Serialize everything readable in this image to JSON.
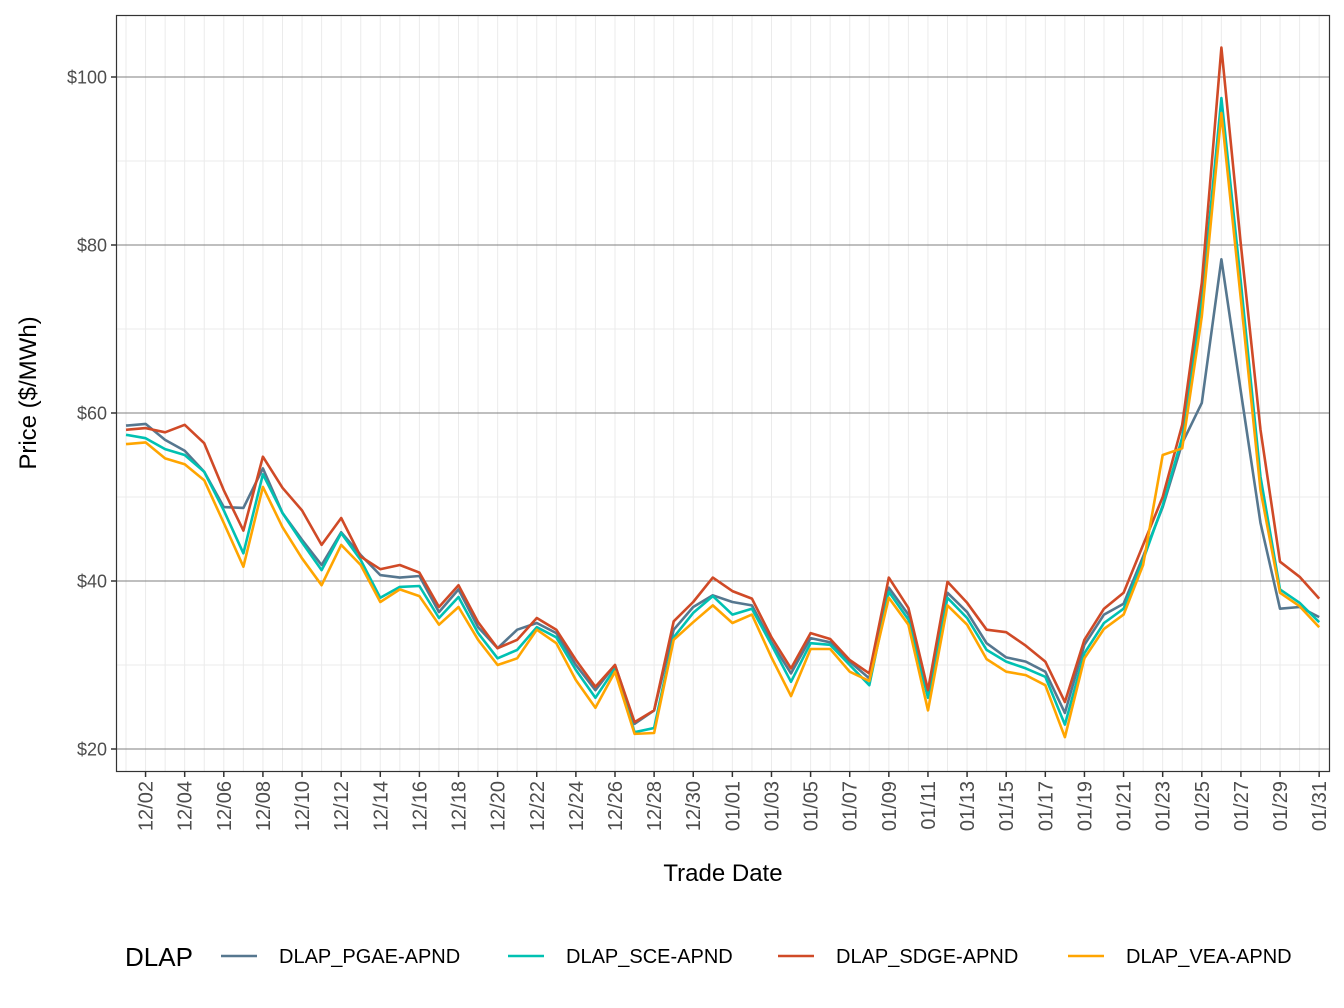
{
  "chart_data": {
    "type": "line",
    "title": "",
    "xlabel": "Trade Date",
    "ylabel": "Price ($/MWh)",
    "ylim": [
      17.5,
      107.3
    ],
    "y_ticks": [
      {
        "value": 20,
        "label": "$20"
      },
      {
        "value": 40,
        "label": "$40"
      },
      {
        "value": 60,
        "label": "$60"
      },
      {
        "value": 80,
        "label": "$80"
      },
      {
        "value": 100,
        "label": "$100"
      }
    ],
    "x_tick_labels": [
      "12/02",
      "12/04",
      "12/06",
      "12/08",
      "12/10",
      "12/12",
      "12/14",
      "12/16",
      "12/18",
      "12/20",
      "12/22",
      "12/24",
      "12/26",
      "12/28",
      "12/30",
      "01/01",
      "01/03",
      "01/05",
      "01/07",
      "01/09",
      "01/11",
      "01/13",
      "01/15",
      "01/17",
      "01/19",
      "01/21",
      "01/23",
      "01/25",
      "01/27",
      "01/29",
      "01/31"
    ],
    "x": [
      "12/01",
      "12/02",
      "12/03",
      "12/04",
      "12/05",
      "12/06",
      "12/07",
      "12/08",
      "12/09",
      "12/10",
      "12/11",
      "12/12",
      "12/13",
      "12/14",
      "12/15",
      "12/16",
      "12/17",
      "12/18",
      "12/19",
      "12/20",
      "12/21",
      "12/22",
      "12/23",
      "12/24",
      "12/25",
      "12/26",
      "12/27",
      "12/28",
      "12/29",
      "12/30",
      "12/31",
      "01/01",
      "01/02",
      "01/03",
      "01/04",
      "01/05",
      "01/06",
      "01/07",
      "01/08",
      "01/09",
      "01/10",
      "01/11",
      "01/12",
      "01/13",
      "01/14",
      "01/15",
      "01/16",
      "01/17",
      "01/18",
      "01/19",
      "01/20",
      "01/21",
      "01/22",
      "01/23",
      "01/24",
      "01/25",
      "01/26",
      "01/27",
      "01/28",
      "01/29",
      "01/30",
      "01/31"
    ],
    "grid": true,
    "legend_position": "bottom",
    "legend_title": "DLAP",
    "series": [
      {
        "name": "DLAP_PGAE-APND",
        "color": "#56778F",
        "values": [
          58.5,
          58.7,
          56.8,
          55.5,
          53.0,
          48.8,
          48.7,
          53.4,
          48.1,
          44.9,
          41.9,
          45.8,
          43.1,
          40.7,
          40.4,
          40.6,
          36.3,
          39.0,
          34.5,
          32.0,
          34.2,
          35.0,
          33.8,
          30.0,
          27.0,
          30.0,
          23.0,
          24.6,
          34.2,
          36.9,
          38.3,
          37.5,
          37.1,
          32.7,
          29.0,
          33.2,
          32.7,
          30.4,
          28.4,
          39.2,
          36.0,
          26.7,
          38.6,
          36.3,
          32.6,
          30.9,
          30.4,
          29.2,
          24.3,
          32.4,
          36.0,
          37.3,
          42.9,
          48.8,
          56.4,
          61.2,
          78.3,
          62.5,
          46.9,
          36.7,
          36.9,
          35.7
        ]
      },
      {
        "name": "DLAP_SCE-APND",
        "color": "#00C1B2",
        "values": [
          57.4,
          57.0,
          55.7,
          55.0,
          53.0,
          48.4,
          43.3,
          52.7,
          48.1,
          44.6,
          41.3,
          45.7,
          42.5,
          38.0,
          39.3,
          39.4,
          35.6,
          38.1,
          33.8,
          30.8,
          31.8,
          34.5,
          33.3,
          29.4,
          26.1,
          29.6,
          22.0,
          22.5,
          33.3,
          36.2,
          38.2,
          36.0,
          36.7,
          32.4,
          28.0,
          32.6,
          32.4,
          30.0,
          27.6,
          38.7,
          35.4,
          26.1,
          38.0,
          35.6,
          31.8,
          30.4,
          29.6,
          28.6,
          22.9,
          31.4,
          35.0,
          36.7,
          42.5,
          49.0,
          57.1,
          73.5,
          97.5,
          75.5,
          52.4,
          39.0,
          37.4,
          35.1
        ]
      },
      {
        "name": "DLAP_SDGE-APND",
        "color": "#D04A27",
        "values": [
          58.0,
          58.2,
          57.7,
          58.6,
          56.4,
          50.8,
          46.0,
          54.8,
          51.1,
          48.4,
          44.3,
          47.5,
          42.9,
          41.4,
          41.9,
          41.0,
          36.9,
          39.5,
          35.1,
          32.0,
          33.0,
          35.6,
          34.2,
          30.6,
          27.4,
          30.0,
          23.2,
          24.6,
          35.2,
          37.5,
          40.4,
          38.8,
          37.9,
          33.3,
          29.6,
          33.8,
          33.1,
          30.6,
          29.0,
          40.4,
          36.8,
          27.0,
          39.9,
          37.4,
          34.2,
          33.9,
          32.3,
          30.4,
          25.6,
          33.0,
          36.7,
          38.6,
          44.3,
          50.0,
          58.6,
          75.5,
          103.5,
          80.0,
          58.0,
          42.3,
          40.5,
          37.9
        ]
      },
      {
        "name": "DLAP_VEA-APND",
        "color": "#FFA500",
        "values": [
          56.3,
          56.5,
          54.6,
          53.9,
          52.0,
          46.9,
          41.7,
          51.2,
          46.4,
          42.7,
          39.5,
          44.3,
          41.9,
          37.5,
          39.0,
          38.2,
          34.8,
          36.9,
          33.0,
          30.0,
          30.8,
          34.2,
          32.6,
          28.2,
          24.9,
          29.2,
          21.8,
          21.9,
          33.0,
          35.1,
          37.1,
          35.0,
          36.0,
          30.9,
          26.3,
          31.9,
          31.9,
          29.2,
          28.1,
          38.0,
          34.8,
          24.6,
          37.1,
          34.8,
          30.7,
          29.2,
          28.8,
          27.6,
          21.4,
          30.8,
          34.3,
          36.0,
          41.9,
          55.0,
          55.8,
          71.5,
          95.7,
          73.5,
          50.8,
          38.6,
          37.0,
          34.5
        ]
      }
    ]
  }
}
